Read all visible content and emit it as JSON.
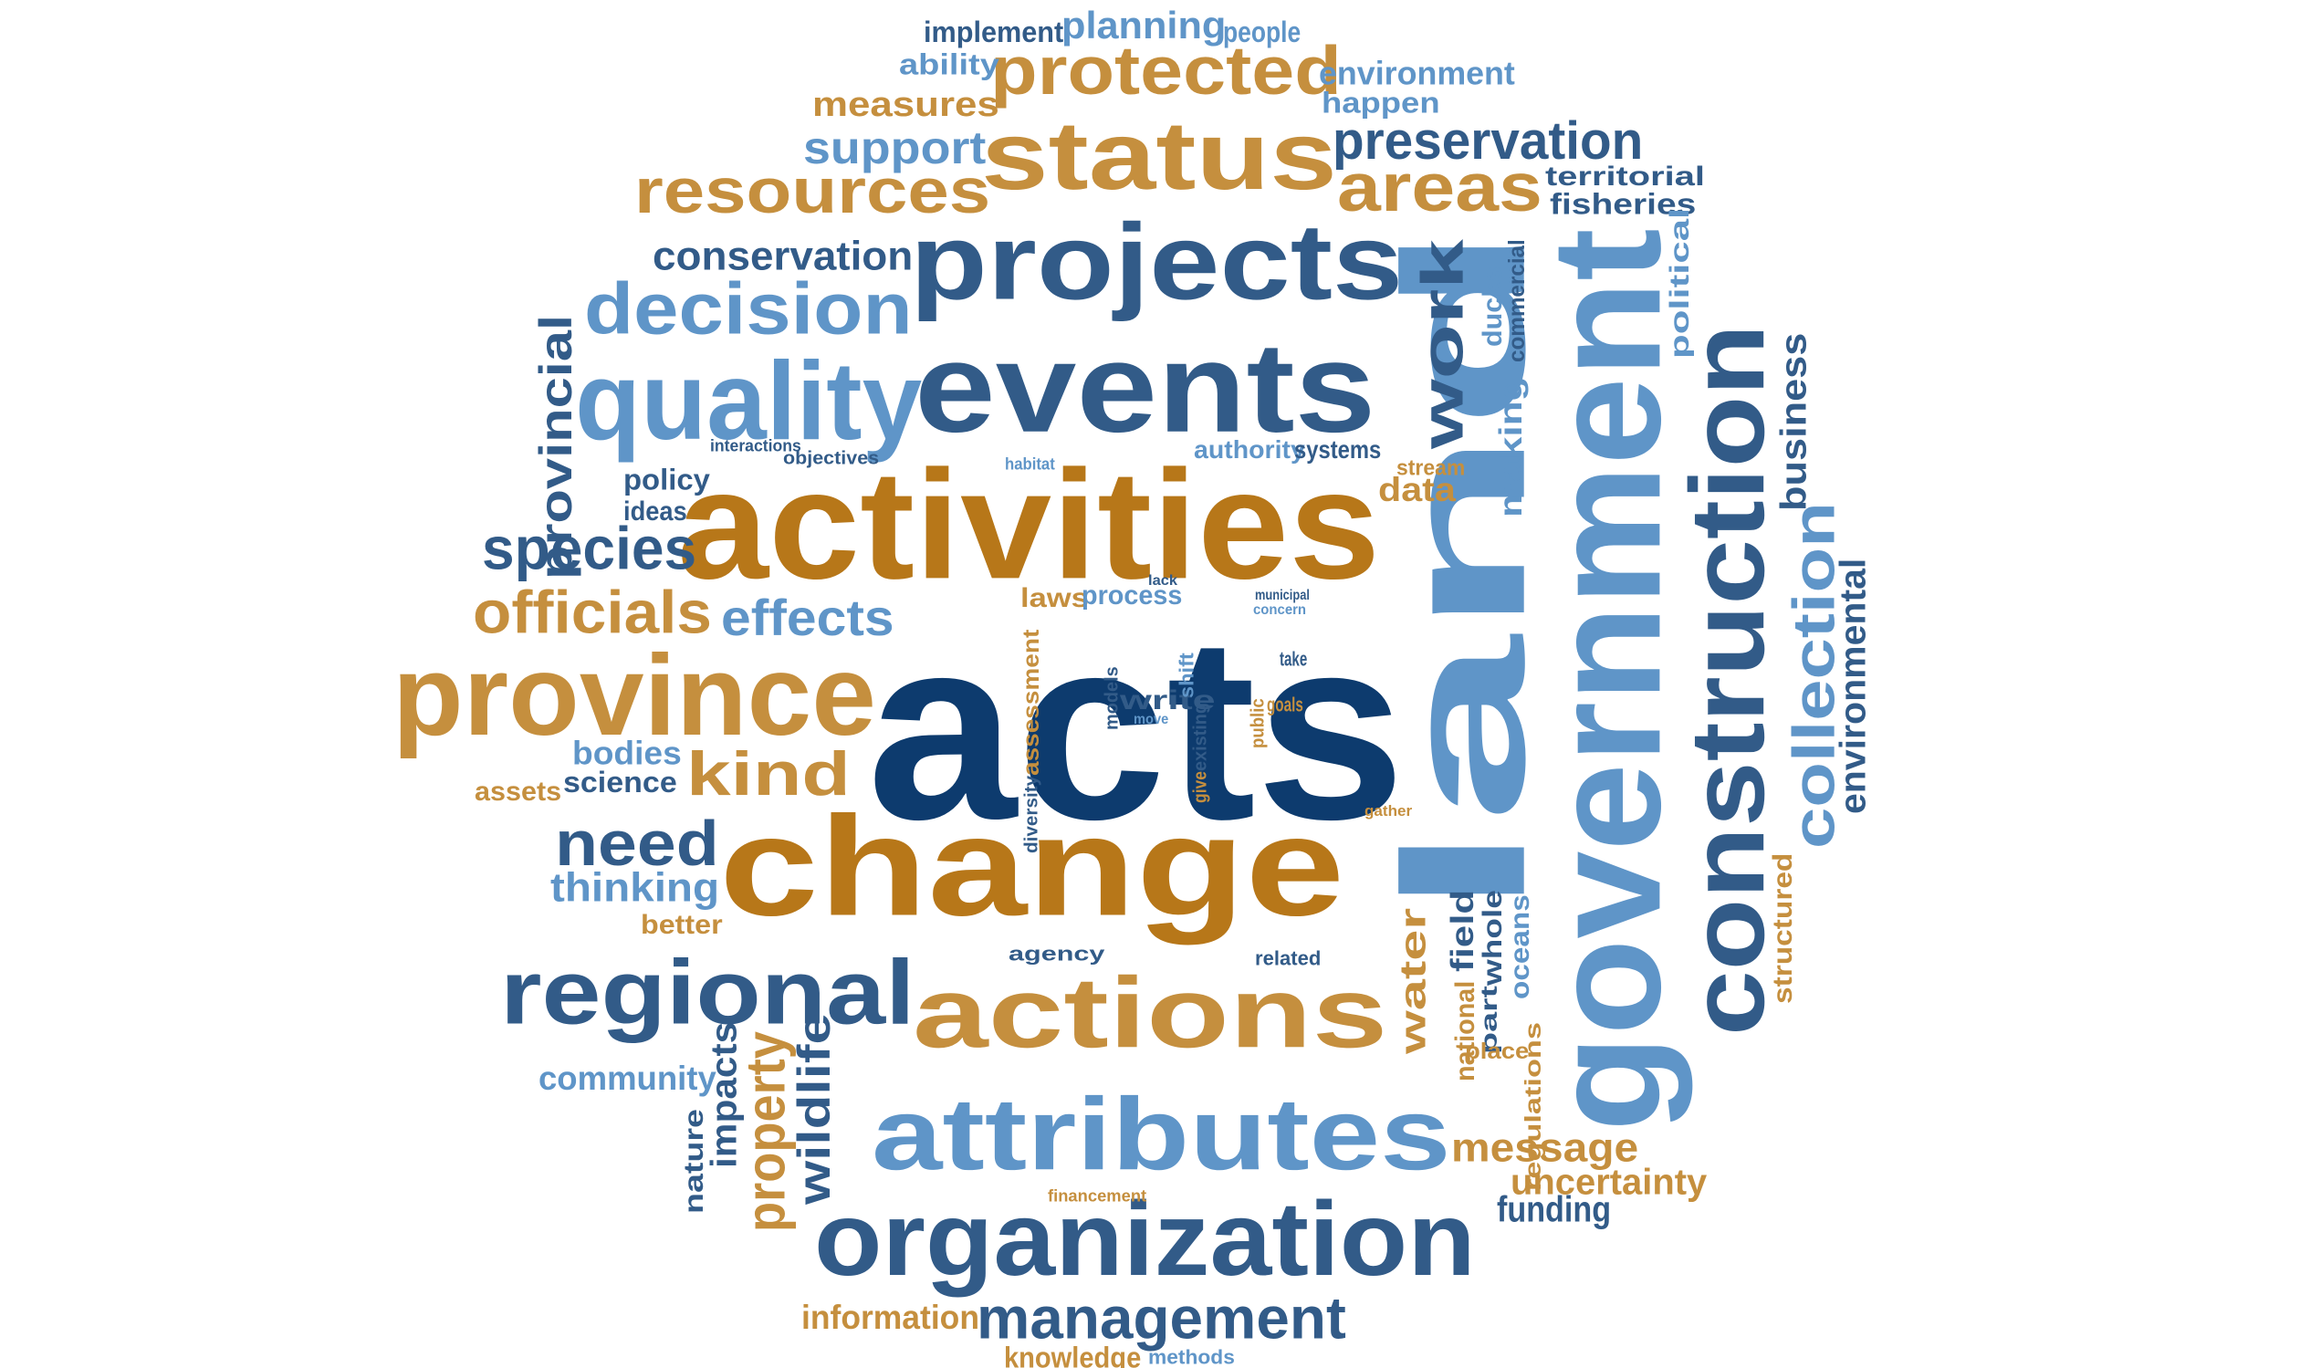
{
  "palette": {
    "navy": "#0d3b6e",
    "slate": "#325b88",
    "sky": "#5f95c8",
    "amber": "#b77719",
    "gold": "#c58f3e"
  },
  "words": [
    {
      "text": "acts",
      "color": "navy"
    },
    {
      "text": "change",
      "color": "amber"
    },
    {
      "text": "land",
      "color": "sky"
    },
    {
      "text": "government",
      "color": "sky"
    },
    {
      "text": "activities",
      "color": "amber"
    },
    {
      "text": "events",
      "color": "slate"
    },
    {
      "text": "projects",
      "color": "slate"
    },
    {
      "text": "construction",
      "color": "slate"
    },
    {
      "text": "organization",
      "color": "slate"
    },
    {
      "text": "attributes",
      "color": "sky"
    },
    {
      "text": "actions",
      "color": "gold"
    },
    {
      "text": "province",
      "color": "gold"
    },
    {
      "text": "quality",
      "color": "sky"
    },
    {
      "text": "status",
      "color": "gold"
    },
    {
      "text": "regional",
      "color": "slate"
    },
    {
      "text": "protected",
      "color": "gold"
    },
    {
      "text": "resources",
      "color": "gold"
    },
    {
      "text": "decision",
      "color": "sky"
    },
    {
      "text": "areas",
      "color": "gold"
    },
    {
      "text": "work",
      "color": "slate"
    },
    {
      "text": "collection",
      "color": "sky"
    },
    {
      "text": "management",
      "color": "slate"
    },
    {
      "text": "preservation",
      "color": "slate"
    },
    {
      "text": "officials",
      "color": "gold"
    },
    {
      "text": "species",
      "color": "slate"
    },
    {
      "text": "need",
      "color": "slate"
    },
    {
      "text": "kind",
      "color": "gold"
    },
    {
      "text": "effects",
      "color": "sky"
    },
    {
      "text": "conservation",
      "color": "slate"
    },
    {
      "text": "support",
      "color": "sky"
    },
    {
      "text": "measures",
      "color": "gold"
    },
    {
      "text": "planning",
      "color": "sky"
    },
    {
      "text": "implement",
      "color": "slate"
    },
    {
      "text": "people",
      "color": "sky"
    },
    {
      "text": "environment",
      "color": "sky"
    },
    {
      "text": "happen",
      "color": "sky"
    },
    {
      "text": "ability",
      "color": "sky"
    },
    {
      "text": "territorial",
      "color": "slate"
    },
    {
      "text": "fisheries",
      "color": "slate"
    },
    {
      "text": "provincial",
      "color": "slate"
    },
    {
      "text": "business",
      "color": "slate"
    },
    {
      "text": "environmental",
      "color": "slate"
    },
    {
      "text": "political",
      "color": "sky"
    },
    {
      "text": "commercial",
      "color": "slate"
    },
    {
      "text": "ducks",
      "color": "sky"
    },
    {
      "text": "making",
      "color": "sky"
    },
    {
      "text": "authority",
      "color": "sky"
    },
    {
      "text": "systems",
      "color": "slate"
    },
    {
      "text": "stream",
      "color": "gold"
    },
    {
      "text": "data",
      "color": "gold"
    },
    {
      "text": "policy",
      "color": "slate"
    },
    {
      "text": "ideas",
      "color": "slate"
    },
    {
      "text": "objectives",
      "color": "slate"
    },
    {
      "text": "interactions",
      "color": "slate"
    },
    {
      "text": "habitat",
      "color": "sky"
    },
    {
      "text": "laws",
      "color": "gold"
    },
    {
      "text": "process",
      "color": "sky"
    },
    {
      "text": "lack",
      "color": "slate"
    },
    {
      "text": "municipal",
      "color": "slate"
    },
    {
      "text": "concern",
      "color": "sky"
    },
    {
      "text": "write",
      "color": "slate"
    },
    {
      "text": "models",
      "color": "slate"
    },
    {
      "text": "shift",
      "color": "sky"
    },
    {
      "text": "take",
      "color": "slate"
    },
    {
      "text": "goals",
      "color": "gold"
    },
    {
      "text": "move",
      "color": "sky"
    },
    {
      "text": "public",
      "color": "gold"
    },
    {
      "text": "existing",
      "color": "slate"
    },
    {
      "text": "give",
      "color": "gold"
    },
    {
      "text": "assessment",
      "color": "gold"
    },
    {
      "text": "diversity",
      "color": "slate"
    },
    {
      "text": "gather",
      "color": "gold"
    },
    {
      "text": "bodies",
      "color": "sky"
    },
    {
      "text": "science",
      "color": "slate"
    },
    {
      "text": "assets",
      "color": "gold"
    },
    {
      "text": "thinking",
      "color": "sky"
    },
    {
      "text": "better",
      "color": "gold"
    },
    {
      "text": "community",
      "color": "sky"
    },
    {
      "text": "impacts",
      "color": "slate"
    },
    {
      "text": "property",
      "color": "gold"
    },
    {
      "text": "wildlife",
      "color": "slate"
    },
    {
      "text": "nature",
      "color": "slate"
    },
    {
      "text": "agency",
      "color": "slate"
    },
    {
      "text": "related",
      "color": "slate"
    },
    {
      "text": "water",
      "color": "gold"
    },
    {
      "text": "field",
      "color": "slate"
    },
    {
      "text": "whole",
      "color": "slate"
    },
    {
      "text": "oceans",
      "color": "sky"
    },
    {
      "text": "national",
      "color": "gold"
    },
    {
      "text": "part",
      "color": "slate"
    },
    {
      "text": "place",
      "color": "gold"
    },
    {
      "text": "regulations",
      "color": "gold"
    },
    {
      "text": "structured",
      "color": "gold"
    },
    {
      "text": "message",
      "color": "gold"
    },
    {
      "text": "uncertainty",
      "color": "gold"
    },
    {
      "text": "funding",
      "color": "slate"
    },
    {
      "text": "financement",
      "color": "gold"
    },
    {
      "text": "information",
      "color": "gold"
    },
    {
      "text": "knowledge",
      "color": "gold"
    },
    {
      "text": "methods",
      "color": "sky"
    }
  ]
}
